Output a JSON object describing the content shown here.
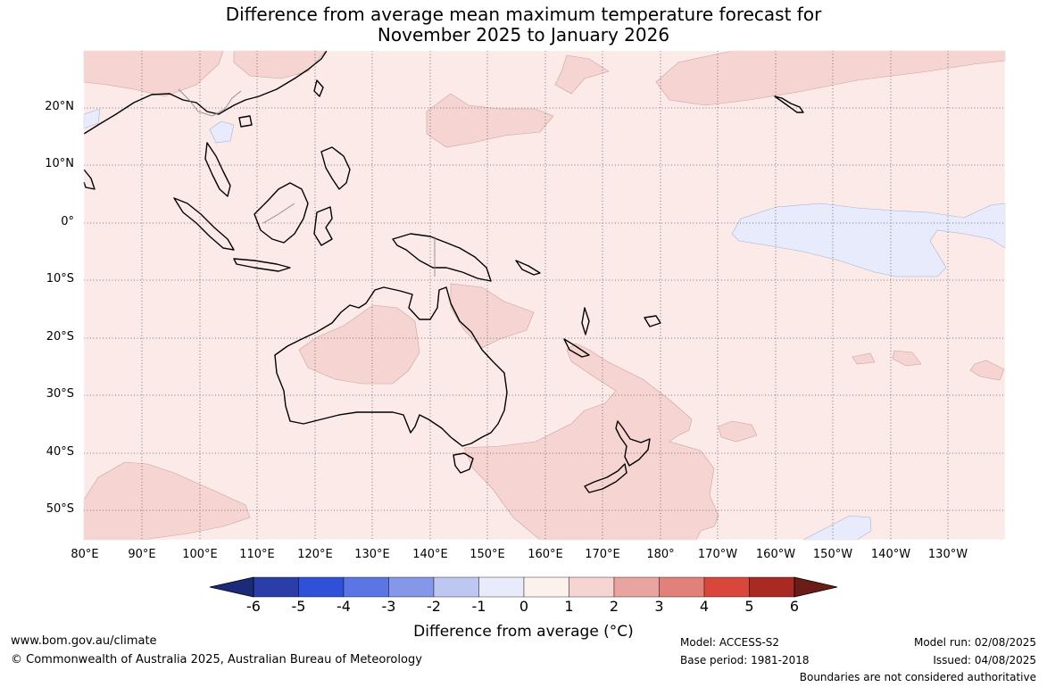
{
  "title_line1": "Difference from average mean maximum temperature forecast for",
  "title_line2": "November 2025 to January 2026",
  "lat_labels": [
    "20°N",
    "10°N",
    "0°",
    "10°S",
    "20°S",
    "30°S",
    "40°S",
    "50°S"
  ],
  "lon_labels": [
    "80°E",
    "90°E",
    "100°E",
    "110°E",
    "120°E",
    "130°E",
    "140°E",
    "150°E",
    "160°E",
    "170°E",
    "180°",
    "170°W",
    "160°W",
    "150°W",
    "140°W",
    "130°W"
  ],
  "colorbar": {
    "ticks": [
      "-6",
      "-5",
      "-4",
      "-3",
      "-2",
      "-1",
      "0",
      "1",
      "2",
      "3",
      "4",
      "5",
      "6"
    ],
    "colors": [
      "#2a3da8",
      "#2e51d8",
      "#5a75e4",
      "#8597e8",
      "#bec7f2",
      "#e8ebfb",
      "#fdf1ee",
      "#f5d4d2",
      "#eaa49f",
      "#e2807a",
      "#d9463b",
      "#a82a22"
    ],
    "under_color": "#1c2b78",
    "over_color": "#6b1c17",
    "label": "Difference from average (°C)"
  },
  "map_colors": {
    "ocean_base": "#fbeae8",
    "warm_anomaly": "#f5d4d2",
    "cool_anomaly": "#e8ebfb"
  },
  "footer": {
    "website": "www.bom.gov.au/climate",
    "copyright": "© Commonwealth of Australia 2025, Australian Bureau of Meteorology",
    "model": "Model: ACCESS-S2",
    "base_period": "Base period: 1981-2018",
    "model_run": "Model run: 02/08/2025",
    "issued": "Issued: 04/08/2025",
    "disclaimer": "Boundaries are not considered authoritative"
  }
}
